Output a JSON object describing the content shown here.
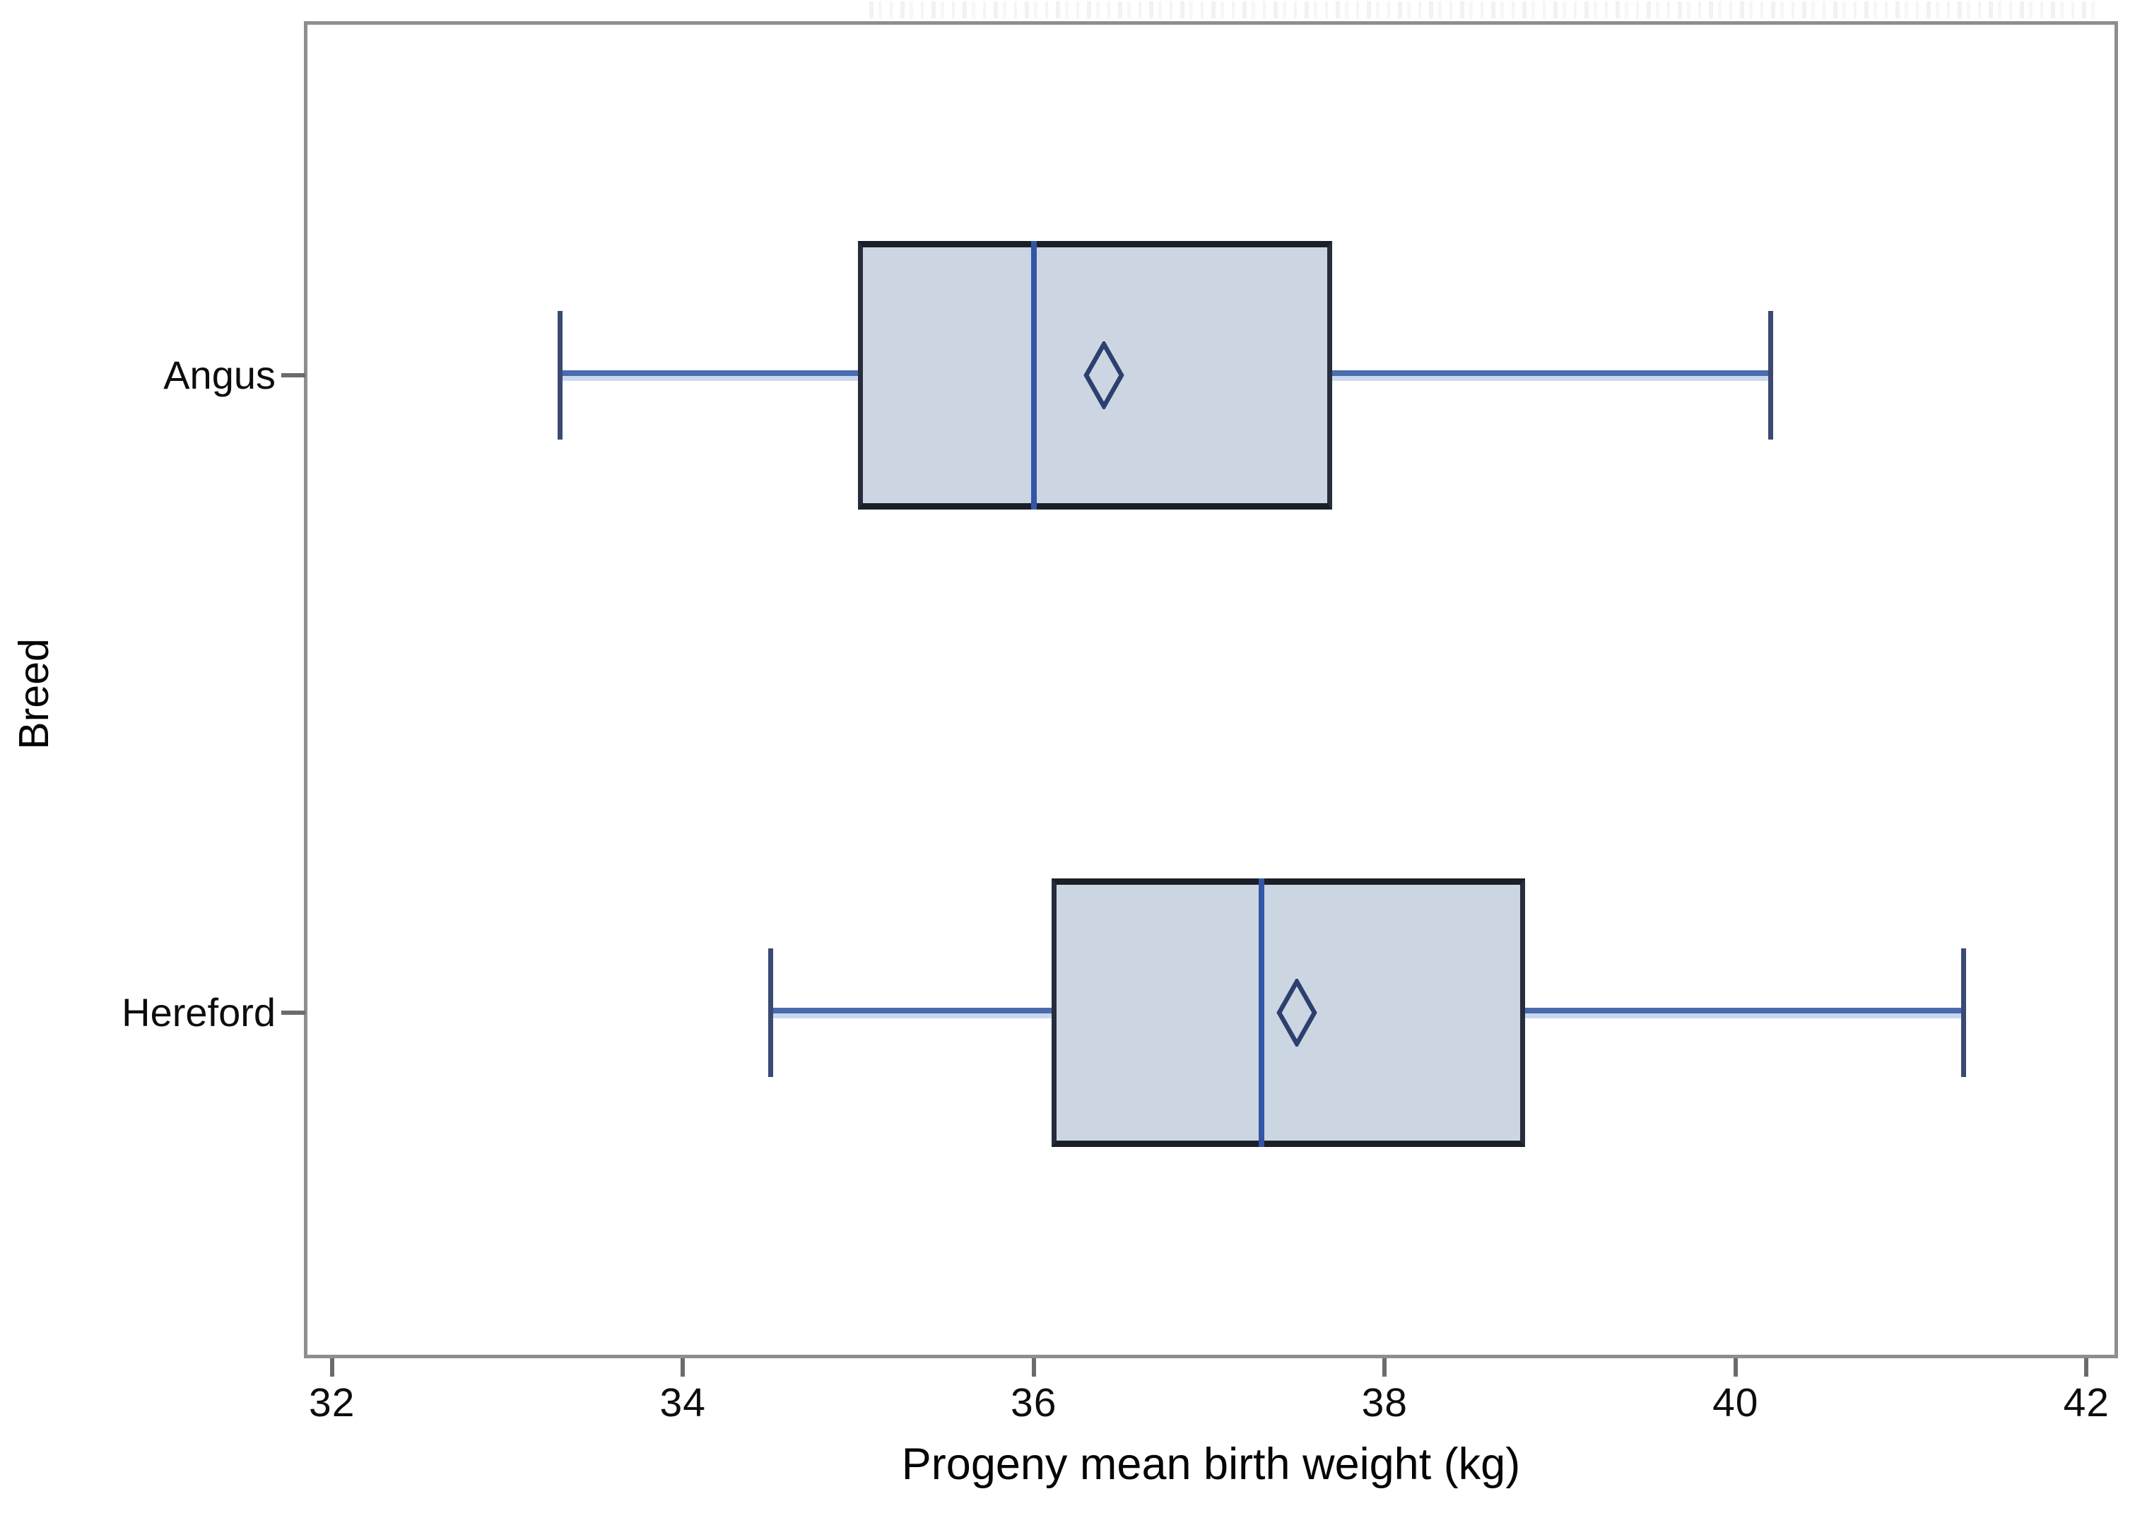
{
  "page": {
    "background": "#ffffff"
  },
  "chart_data": {
    "type": "boxplot",
    "orientation": "horizontal",
    "title": "",
    "xlabel": "Progeny mean birth weight (kg)",
    "ylabel": "Breed",
    "x_ticks": [
      32,
      34,
      36,
      38,
      40,
      42
    ],
    "xlim": [
      31.84,
      42.18
    ],
    "grid": false,
    "legend": "none",
    "categories": [
      "Angus",
      "Hereford"
    ],
    "series": [
      {
        "name": "Angus",
        "whisker_low": 33.3,
        "q1": 35.0,
        "median": 36.0,
        "mean": 36.4,
        "q3": 37.7,
        "whisker_high": 40.2
      },
      {
        "name": "Hereford",
        "whisker_low": 34.5,
        "q1": 36.1,
        "median": 37.3,
        "mean": 37.5,
        "q3": 38.8,
        "whisker_high": 41.3
      }
    ],
    "colors": {
      "box_fill": "#ccd6e3",
      "box_border_horizontal": "#1b1f28",
      "box_border_vertical": "#272d3b",
      "median_line": "#3355a8",
      "whisker_line": "#4a6bad",
      "whisker_halo": "#c9d8f0",
      "whisker_cap": "#3b4a73",
      "mean_marker": "#2d3f6e",
      "frame": "#8e8e8e",
      "tick": "#6b6b6b",
      "text": "#0d0d0d"
    }
  }
}
